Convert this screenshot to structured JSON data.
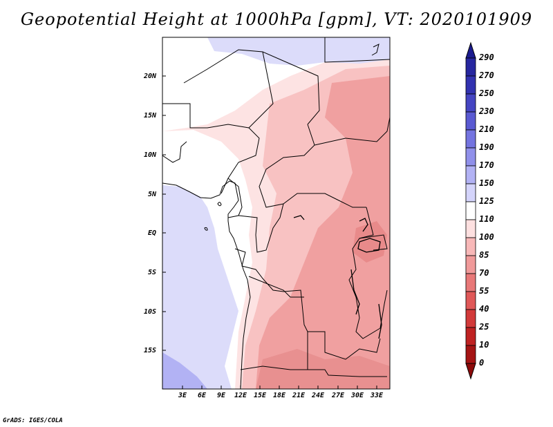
{
  "title": "Geopotential Height at 1000hPa [gpm], VT: 2020101909",
  "credit": "GrADS: IGES/COLA",
  "map": {
    "lat_labels": [
      "20N",
      "15N",
      "10N",
      "5N",
      "EQ",
      "5S",
      "10S",
      "15S"
    ],
    "lon_labels": [
      "3E",
      "6E",
      "9E",
      "12E",
      "15E",
      "18E",
      "21E",
      "24E",
      "27E",
      "30E",
      "33E"
    ],
    "lon_range": [
      0,
      35
    ],
    "lat_range": [
      -20,
      25
    ]
  },
  "colorbar": {
    "levels": [
      "290",
      "270",
      "250",
      "230",
      "210",
      "190",
      "170",
      "150",
      "125",
      "110",
      "100",
      "85",
      "70",
      "55",
      "40",
      "25",
      "10",
      "0"
    ],
    "colors": [
      "#1b1b8f",
      "#26269f",
      "#3232b0",
      "#4545c2",
      "#5a5ad2",
      "#7474e0",
      "#9090ea",
      "#b2b2f4",
      "#d4d4fb",
      "#ffffff",
      "#fde0e0",
      "#f8b8b8",
      "#f09a9a",
      "#e87878",
      "#e05858",
      "#d23a3a",
      "#bf2222",
      "#a51414",
      "#8c0a0a"
    ]
  }
}
